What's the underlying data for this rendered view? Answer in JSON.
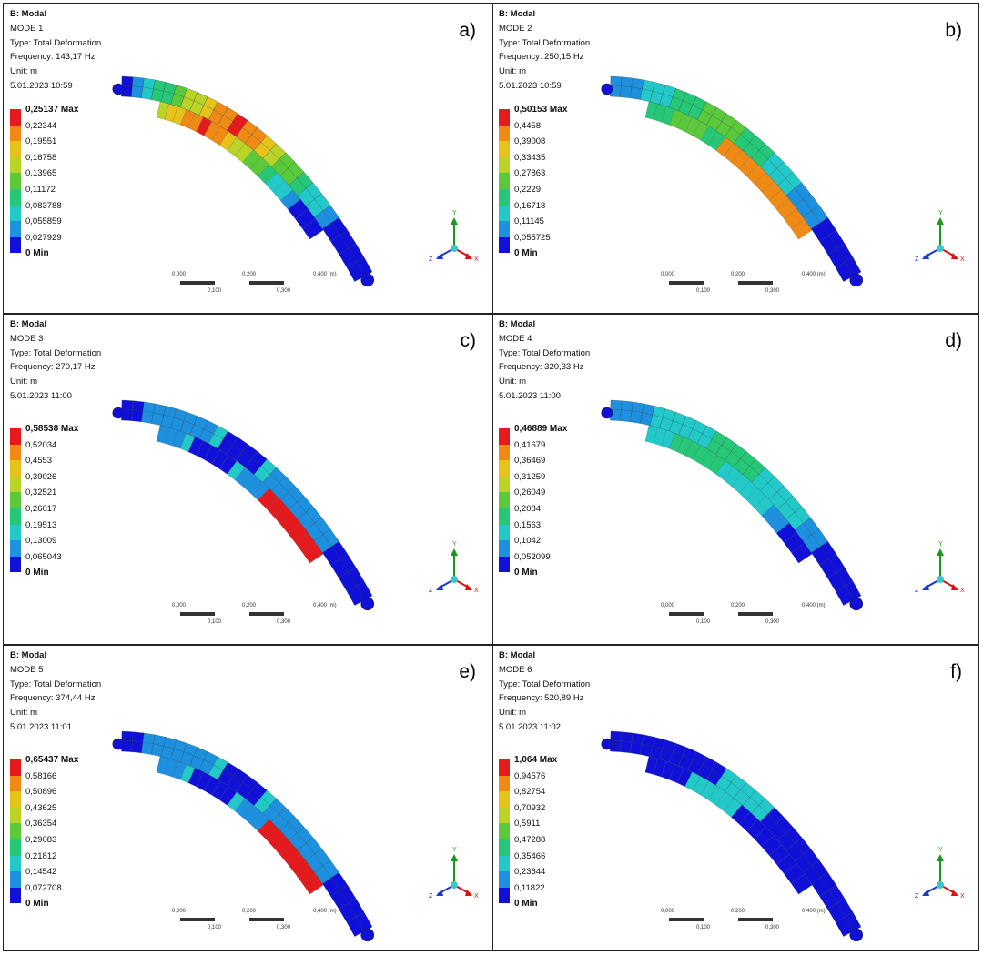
{
  "panels": [
    {
      "letter": "a)",
      "header": "B: Modal",
      "mode": "MODE 1",
      "type": "Type: Total Deformation",
      "frequency": "Frequency: 143,17 Hz",
      "unit": "Unit: m",
      "timestamp": "5.01.2023 10:59",
      "legend": [
        "0,25137 Max",
        "0,22344",
        "0,19551",
        "0,16758",
        "0,13965",
        "0,11172",
        "0,083788",
        "0,055859",
        "0,027929",
        "0 Min"
      ],
      "pattern": "center-red"
    },
    {
      "letter": "b)",
      "header": "B: Modal",
      "mode": "MODE 2",
      "type": "Type: Total Deformation",
      "frequency": "Frequency: 250,15 Hz",
      "unit": "Unit: m",
      "timestamp": "5.01.2023 10:59",
      "legend": [
        "0,50153 Max",
        "0,4458",
        "0,39008",
        "0,33435",
        "0,27863",
        "0,2229",
        "0,16718",
        "0,11145",
        "0,055725",
        "0 Min"
      ],
      "pattern": "green-tips-red"
    },
    {
      "letter": "c)",
      "header": "B: Modal",
      "mode": "MODE 3",
      "type": "Type: Total Deformation",
      "frequency": "Frequency: 270,17 Hz",
      "unit": "Unit: m",
      "timestamp": "5.01.2023 11:00",
      "legend": [
        "0,58538 Max",
        "0,52034",
        "0,4553",
        "0,39026",
        "0,32521",
        "0,26017",
        "0,19513",
        "0,13009",
        "0,065043",
        "0 Min"
      ],
      "pattern": "cyan-center-blue"
    },
    {
      "letter": "d)",
      "header": "B: Modal",
      "mode": "MODE 4",
      "type": "Type: Total Deformation",
      "frequency": "Frequency: 320,33 Hz",
      "unit": "Unit: m",
      "timestamp": "5.01.2023 11:00",
      "legend": [
        "0,46889 Max",
        "0,41679",
        "0,36469",
        "0,31259",
        "0,26049",
        "0,2084",
        "0,1563",
        "0,1042",
        "0,052099",
        "0 Min"
      ],
      "pattern": "green-center"
    },
    {
      "letter": "e)",
      "header": "B: Modal",
      "mode": "MODE 5",
      "type": "Type: Total Deformation",
      "frequency": "Frequency: 374,44 Hz",
      "unit": "Unit: m",
      "timestamp": "5.01.2023 11:01",
      "legend": [
        "0,65437 Max",
        "0,58166",
        "0,50896",
        "0,43625",
        "0,36354",
        "0,29083",
        "0,21812",
        "0,14542",
        "0,072708",
        "0 Min"
      ],
      "pattern": "cyan-center-blue"
    },
    {
      "letter": "f)",
      "header": "B: Modal",
      "mode": "MODE 6",
      "type": "Type: Total Deformation",
      "frequency": "Frequency: 520,89 Hz",
      "unit": "Unit: m",
      "timestamp": "5.01.2023 11:02",
      "legend": [
        "1,064 Max",
        "0,94576",
        "0,82754",
        "0,70932",
        "0,5911",
        "0,47288",
        "0,35466",
        "0,23644",
        "0,11822",
        "0 Min"
      ],
      "pattern": "blue-dominant"
    }
  ],
  "legend_colors": [
    "#e41a1c",
    "#f08a14",
    "#e6c21a",
    "#b9d326",
    "#5cc93a",
    "#26c878",
    "#22c9c8",
    "#1e90e0",
    "#1010d8"
  ],
  "scale_labels": {
    "t0": "0,000",
    "t1": "0,200",
    "t2": "0,400 (m)",
    "b1": "0,100",
    "b2": "0,300"
  },
  "triad_labels": {
    "y": "Y",
    "x": "X",
    "z": "Z"
  }
}
